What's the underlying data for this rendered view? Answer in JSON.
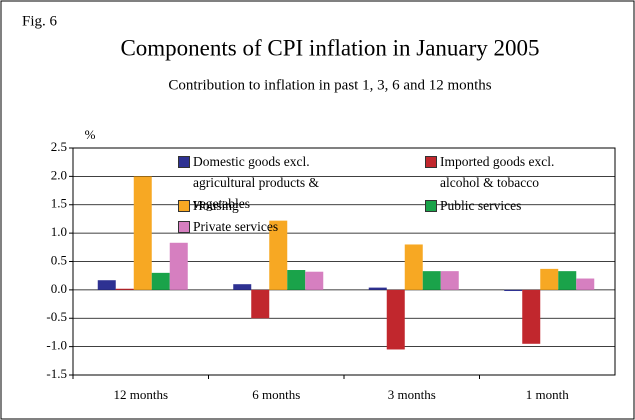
{
  "chart_data": {
    "type": "bar",
    "figure_label": "Fig. 6",
    "title": "Components of CPI inflation in January 2005",
    "subtitle": "Contribution to inflation in past 1, 3, 6 and 12 months",
    "y_axis_label": "%",
    "categories": [
      "12 months",
      "6 months",
      "3 months",
      "1 month"
    ],
    "series": [
      {
        "name": "Domestic goods excl. agricultural products & vegetables",
        "color": "#2e3192",
        "values": [
          0.17,
          0.1,
          0.04,
          -0.02
        ]
      },
      {
        "name": "Imported goods excl. alcohol & tobacco",
        "color": "#c1272d",
        "values": [
          0.02,
          -0.5,
          -1.05,
          -0.95
        ]
      },
      {
        "name": "Housing",
        "color": "#f7a823",
        "values": [
          2.0,
          1.22,
          0.8,
          0.37
        ]
      },
      {
        "name": "Public services",
        "color": "#1aa34a",
        "values": [
          0.3,
          0.35,
          0.33,
          0.33
        ]
      },
      {
        "name": "Private services",
        "color": "#d67fc0",
        "values": [
          0.83,
          0.32,
          0.33,
          0.2
        ]
      }
    ],
    "ylim": [
      -1.5,
      2.5
    ],
    "yticks": [
      2.5,
      {
        "value": 2,
        "label": "2.0"
      },
      1.5,
      {
        "value": 1,
        "label": "1.0"
      },
      0.5,
      {
        "value": 0,
        "label": "0.0"
      },
      -0.5,
      {
        "value": -1,
        "label": "-1.0"
      },
      -1.5
    ],
    "grid": true
  }
}
